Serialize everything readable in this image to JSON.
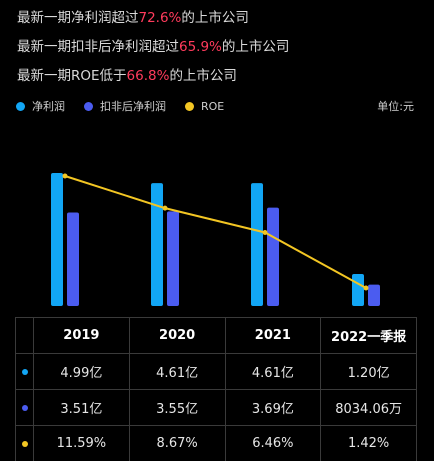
{
  "statements": [
    {
      "prefix": "最新一期净利润超过",
      "value": "72.6%",
      "suffix": "的上市公司"
    },
    {
      "prefix": "最新一期扣非后净利润超过",
      "value": "65.9%",
      "suffix": "的上市公司"
    },
    {
      "prefix": "最新一期ROE低于",
      "value": "66.8%",
      "suffix": "的上市公司"
    }
  ],
  "unit_label": "单位:元",
  "colors": {
    "net_profit": "#12a6f5",
    "deducted": "#4b5cf0",
    "roe": "#f3c623"
  },
  "chart_data": {
    "type": "bar",
    "categories": [
      "2019",
      "2020",
      "2021",
      "2022一季报"
    ],
    "series": [
      {
        "name": "净利润",
        "kind": "bar",
        "values": [
          4.99,
          4.61,
          4.61,
          1.2
        ],
        "unit": "亿"
      },
      {
        "name": "扣非后净利润",
        "kind": "bar",
        "values": [
          3.51,
          3.55,
          3.69,
          0.8034
        ],
        "unit": "亿"
      },
      {
        "name": "ROE",
        "kind": "line",
        "values": [
          11.59,
          8.67,
          6.46,
          1.42
        ],
        "unit": "%"
      }
    ],
    "legend_position": "top-left"
  },
  "table": {
    "headers": [
      "2019",
      "2020",
      "2021",
      "2022一季报"
    ],
    "rows": [
      {
        "series": "net_profit",
        "cells": [
          "4.99亿",
          "4.61亿",
          "4.61亿",
          "1.20亿"
        ]
      },
      {
        "series": "deducted",
        "cells": [
          "3.51亿",
          "3.55亿",
          "3.69亿",
          "8034.06万"
        ]
      },
      {
        "series": "roe",
        "cells": [
          "11.59%",
          "8.67%",
          "6.46%",
          "1.42%"
        ]
      }
    ]
  }
}
